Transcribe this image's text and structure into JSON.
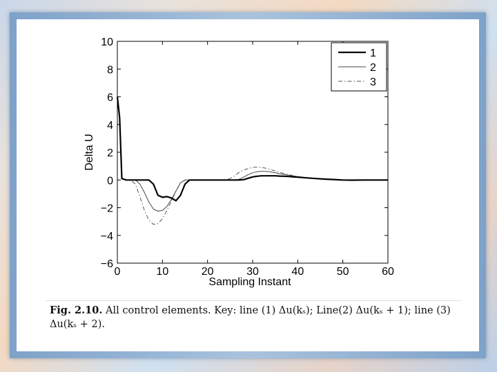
{
  "chart_data": {
    "type": "line",
    "xlabel": "Sampling Instant",
    "ylabel": "Delta U",
    "xlim": [
      0,
      60
    ],
    "ylim": [
      -6,
      10
    ],
    "xticks": [
      0,
      10,
      20,
      30,
      40,
      50,
      60
    ],
    "yticks": [
      10,
      8,
      6,
      4,
      2,
      0,
      -2,
      -4,
      -6
    ],
    "ytick_labels": [
      "10",
      "8",
      "6",
      "4",
      "2",
      "0",
      "−2",
      "−4",
      "−6"
    ],
    "legend_position": "top-right",
    "grid": false,
    "series": [
      {
        "name": "1",
        "style": "solid-thick",
        "x": [
          0,
          0.5,
          1,
          2,
          3,
          4,
          5,
          6,
          7,
          8,
          9,
          10,
          11,
          12,
          13,
          14,
          15,
          16,
          18,
          20,
          22,
          24,
          26,
          27,
          28,
          29,
          30,
          31,
          32,
          33,
          34,
          35,
          36,
          37,
          38,
          39,
          40,
          42,
          44,
          46,
          48,
          50,
          52,
          55,
          60
        ],
        "y": [
          6.0,
          4.5,
          0.1,
          0,
          0,
          0,
          0,
          0,
          0,
          -0.3,
          -1.1,
          -1.25,
          -1.2,
          -1.3,
          -1.5,
          -1.1,
          -0.3,
          0,
          0,
          0,
          0,
          0,
          0,
          0,
          0.02,
          0.12,
          0.22,
          0.27,
          0.3,
          0.3,
          0.3,
          0.3,
          0.28,
          0.27,
          0.25,
          0.22,
          0.2,
          0.15,
          0.1,
          0.06,
          0.03,
          0,
          -0.01,
          0,
          0
        ]
      },
      {
        "name": "2",
        "style": "solid-thin",
        "x": [
          0,
          0.5,
          1,
          2,
          3,
          4,
          5,
          6,
          7,
          8,
          9,
          10,
          11,
          12,
          13,
          14,
          15,
          16,
          18,
          20,
          22,
          24,
          26,
          27,
          28,
          29,
          30,
          31,
          32,
          33,
          34,
          35,
          36,
          37,
          38,
          39,
          40,
          42,
          44,
          46,
          48,
          50,
          52,
          55,
          60
        ],
        "y": [
          6.0,
          4.5,
          0.1,
          0,
          0,
          0,
          -0.3,
          -0.9,
          -1.6,
          -2.1,
          -2.25,
          -2.2,
          -1.9,
          -1.4,
          -0.8,
          -0.2,
          0,
          0,
          0,
          0,
          0,
          0,
          0,
          0.05,
          0.2,
          0.38,
          0.52,
          0.6,
          0.62,
          0.62,
          0.58,
          0.52,
          0.45,
          0.4,
          0.34,
          0.29,
          0.24,
          0.16,
          0.1,
          0.05,
          0.02,
          0,
          -0.01,
          0,
          0
        ]
      },
      {
        "name": "3",
        "style": "dash-dot",
        "x": [
          0,
          0.5,
          1,
          2,
          3,
          4,
          5,
          6,
          7,
          8,
          9,
          10,
          11,
          12,
          13,
          14,
          15,
          16,
          18,
          20,
          22,
          24,
          25,
          26,
          27,
          28,
          29,
          30,
          31,
          32,
          33,
          34,
          35,
          36,
          37,
          38,
          39,
          40,
          42,
          44,
          46,
          48,
          50,
          52,
          55,
          60
        ],
        "y": [
          6.0,
          4.5,
          0.1,
          0,
          0,
          -0.3,
          -1.2,
          -2.2,
          -2.9,
          -3.2,
          -3.15,
          -2.8,
          -2.2,
          -1.5,
          -0.8,
          -0.2,
          0,
          0,
          0,
          0,
          0,
          0,
          0.1,
          0.3,
          0.55,
          0.72,
          0.82,
          0.9,
          0.93,
          0.9,
          0.84,
          0.75,
          0.65,
          0.55,
          0.46,
          0.38,
          0.31,
          0.25,
          0.16,
          0.1,
          0.05,
          0.02,
          0,
          -0.01,
          0,
          0
        ]
      }
    ]
  },
  "caption": {
    "label": "Fig. 2.10.",
    "text": "All control elements. Key: line (1) Δu(kₛ); Line(2) Δu(kₛ + 1); line (3) Δu(kₛ + 2)."
  }
}
